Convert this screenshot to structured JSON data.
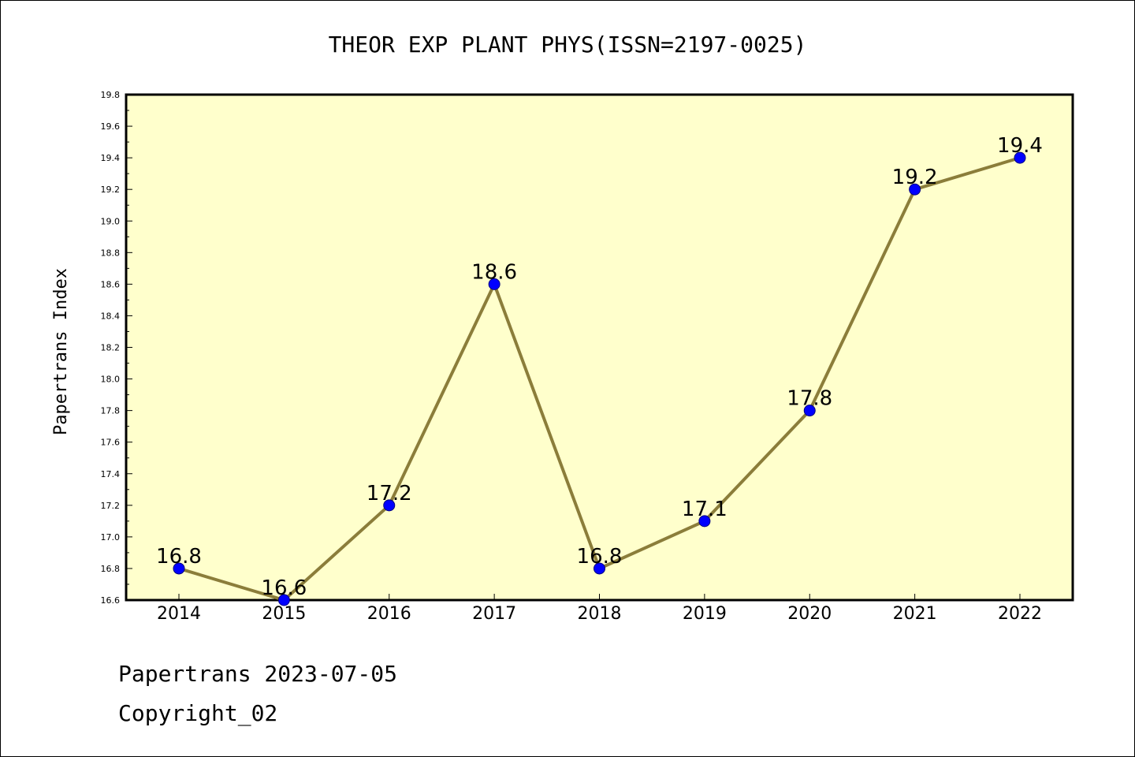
{
  "colors": {
    "plot_bg": "#ffffcc",
    "line": "#8b7d3a",
    "marker": "#0000ff",
    "marker_edge": "#000080"
  },
  "chart_data": {
    "type": "line",
    "title": "THEOR EXP PLANT PHYS(ISSN=2197-0025)",
    "xlabel": "",
    "ylabel": "Papertrans Index",
    "categories": [
      "2014",
      "2015",
      "2016",
      "2017",
      "2018",
      "2019",
      "2020",
      "2021",
      "2022"
    ],
    "values": [
      16.8,
      16.6,
      17.2,
      18.6,
      16.8,
      17.1,
      17.8,
      19.2,
      19.4
    ],
    "data_labels": [
      "16.8",
      "16.6",
      "17.2",
      "18.6",
      "16.8",
      "17.1",
      "17.8",
      "19.2",
      "19.4"
    ],
    "ylim": [
      16.6,
      19.8
    ],
    "yticks": [
      "16.6",
      "16.8",
      "17.0",
      "17.2",
      "17.4",
      "17.6",
      "17.8",
      "18.0",
      "18.2",
      "18.4",
      "18.6",
      "18.8",
      "19.0",
      "19.2",
      "19.4",
      "19.6",
      "19.8"
    ],
    "grid": false,
    "legend": "none"
  },
  "footer": {
    "line1": "Papertrans 2023-07-05",
    "line2": "Copyright_02"
  }
}
